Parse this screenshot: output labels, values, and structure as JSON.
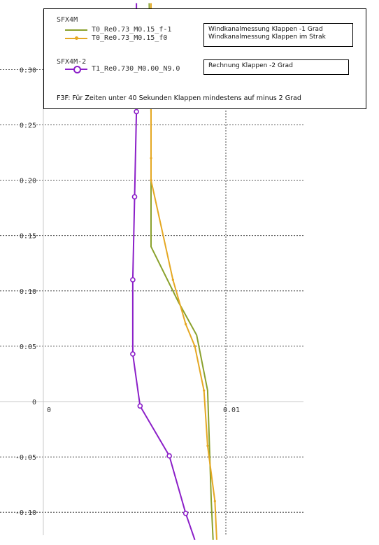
{
  "chart_data": {
    "type": "line",
    "xlim": [
      0,
      0.0142
    ],
    "ylim": [
      -0.12,
      0.355
    ],
    "x_ticks": [
      {
        "value": 0,
        "label": "0"
      },
      {
        "value": 0.01,
        "label": "0.01"
      }
    ],
    "y_ticks": [
      {
        "value": 0.3,
        "label": "0.30"
      },
      {
        "value": 0.25,
        "label": "0.25"
      },
      {
        "value": 0.2,
        "label": "0.20"
      },
      {
        "value": 0.15,
        "label": "0.15"
      },
      {
        "value": 0.1,
        "label": "0.10"
      },
      {
        "value": 0.05,
        "label": "0.05"
      },
      {
        "value": 0,
        "label": "0"
      },
      {
        "value": -0.05,
        "label": "-0.05"
      },
      {
        "value": -0.1,
        "label": "-0.10"
      }
    ],
    "grid": true,
    "legend_position": "top",
    "series": [
      {
        "name": "T0_Re0.73_M0.15_f-1",
        "color": "#8aa12c",
        "marker": "none",
        "points": [
          [
            0.0058,
            0.36
          ],
          [
            0.0059,
            0.26
          ],
          [
            0.0059,
            0.14
          ],
          [
            0.0074,
            0.09
          ],
          [
            0.0084,
            0.06
          ],
          [
            0.009,
            0.01
          ],
          [
            0.0091,
            -0.04
          ],
          [
            0.0092,
            -0.09
          ],
          [
            0.0093,
            -0.125
          ]
        ]
      },
      {
        "name": "T0_Re0.73_M0.15_f0",
        "color": "#e5a823",
        "marker": "small",
        "points": [
          [
            0.0059,
            0.36
          ],
          [
            0.0059,
            0.22
          ],
          [
            0.0059,
            0.2
          ],
          [
            0.0071,
            0.11
          ],
          [
            0.0078,
            0.07
          ],
          [
            0.0083,
            0.05
          ],
          [
            0.0088,
            0.01
          ],
          [
            0.009,
            -0.04
          ],
          [
            0.0094,
            -0.09
          ],
          [
            0.0095,
            -0.125
          ]
        ]
      },
      {
        "name": "T1_Re0.730_M0.00_N9.0",
        "color": "#8b1fc8",
        "marker": "circle",
        "points": [
          [
            0.0051,
            0.36
          ],
          [
            0.0051,
            0.262
          ],
          [
            0.005,
            0.185
          ],
          [
            0.0049,
            0.11
          ],
          [
            0.0049,
            0.043
          ],
          [
            0.0053,
            -0.004
          ],
          [
            0.0069,
            -0.049
          ],
          [
            0.0078,
            -0.101
          ],
          [
            0.0083,
            -0.125
          ]
        ]
      }
    ]
  },
  "legend": {
    "groups": [
      {
        "title": "SFX4M",
        "entries": [
          {
            "label": "T0_Re0.73_M0.15_f-1",
            "color": "#8aa12c",
            "marker": "none"
          },
          {
            "label": "T0_Re0.73_M0.15_f0",
            "color": "#e5a823",
            "marker": "small"
          }
        ],
        "description": [
          "Windkanalmessung Klappen -1 Grad",
          "Windkanalmessung Klappen im Strak"
        ]
      },
      {
        "title": "SFX4M-2",
        "entries": [
          {
            "label": "T1_Re0.730_M0.00_N9.0",
            "color": "#8b1fc8",
            "marker": "circle"
          }
        ],
        "description": [
          "Rechnung Klappen -2 Grad"
        ]
      }
    ],
    "footnote": "F3F: Für Zeiten unter 40 Sekunden Klappen mindestens auf minus 2 Grad"
  }
}
